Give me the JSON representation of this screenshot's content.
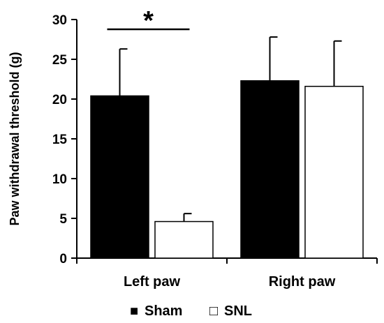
{
  "chart_data": {
    "type": "bar",
    "title": "",
    "xlabel": "",
    "ylabel": "Paw withdrawal threshold (g)",
    "ylim": [
      0,
      30
    ],
    "yticks": [
      0,
      5,
      10,
      15,
      20,
      25,
      30
    ],
    "grid": false,
    "legend_position": "bottom",
    "categories": [
      "Left paw",
      "Right paw"
    ],
    "series": [
      {
        "name": "Sham",
        "values": [
          20.4,
          22.3
        ],
        "errors": [
          5.9,
          5.5
        ],
        "fill": "#000000",
        "legend_marker": "■"
      },
      {
        "name": "SNL",
        "values": [
          4.6,
          21.6
        ],
        "errors": [
          1.0,
          5.7
        ],
        "fill": "#ffffff",
        "legend_marker": "□"
      }
    ],
    "annotations": [
      {
        "text": "*",
        "category_index": 0
      }
    ]
  }
}
